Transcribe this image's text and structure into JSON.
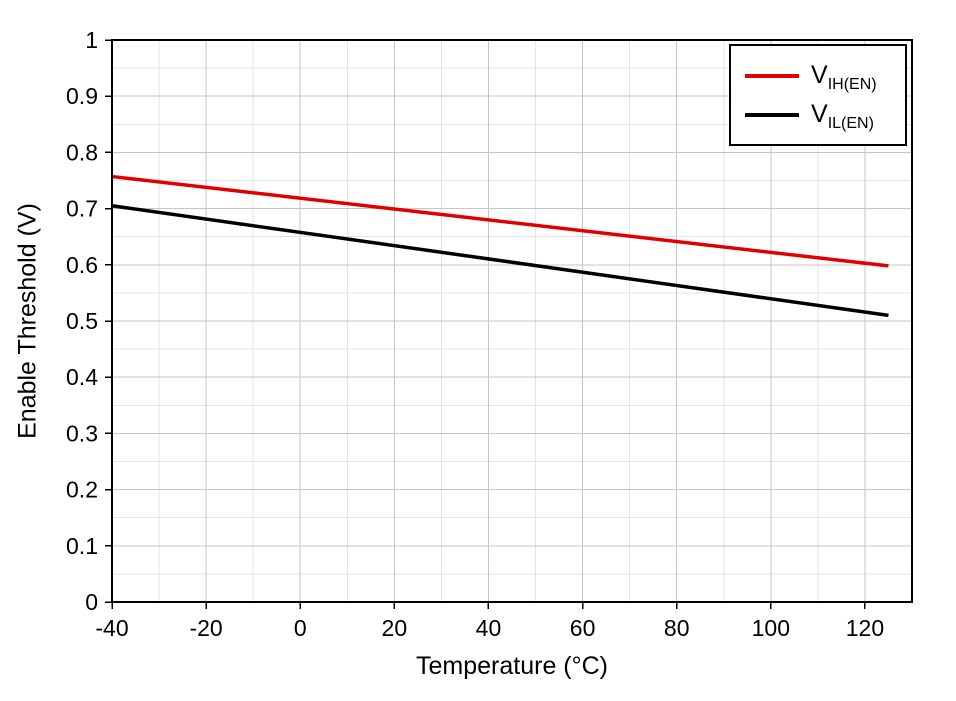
{
  "chart_data": {
    "type": "line",
    "title": "",
    "xlabel": "Temperature (°C)",
    "ylabel": "Enable Threshold (V)",
    "xlim": [
      -40,
      130
    ],
    "ylim": [
      0,
      1
    ],
    "x_major_ticks": [
      -40,
      -20,
      0,
      20,
      40,
      60,
      80,
      100,
      120
    ],
    "x_tick_labels": [
      "-40",
      "-20",
      "0",
      "20",
      "40",
      "60",
      "80",
      "100",
      "120"
    ],
    "y_major_ticks": [
      0,
      0.1,
      0.2,
      0.3,
      0.4,
      0.5,
      0.6,
      0.7,
      0.8,
      0.9,
      1
    ],
    "y_tick_labels": [
      "0",
      "0.1",
      "0.2",
      "0.3",
      "0.4",
      "0.5",
      "0.6",
      "0.7",
      "0.8",
      "0.9",
      "1"
    ],
    "x_minor_step": 10,
    "y_minor_step": 0.05,
    "grid": true,
    "legend_position": "top-right",
    "colors": {
      "grid_minor": "#e3e3e3",
      "grid_major": "#c6c6c6",
      "axis": "#000000"
    },
    "series": [
      {
        "name": "VIH(EN)",
        "label_base": "V",
        "label_sub": "IH(EN)",
        "color": "#e00000",
        "x": [
          -40,
          125
        ],
        "y": [
          0.757,
          0.598
        ]
      },
      {
        "name": "VIL(EN)",
        "label_base": "V",
        "label_sub": "IL(EN)",
        "color": "#000000",
        "x": [
          -40,
          125
        ],
        "y": [
          0.705,
          0.51
        ]
      }
    ]
  }
}
